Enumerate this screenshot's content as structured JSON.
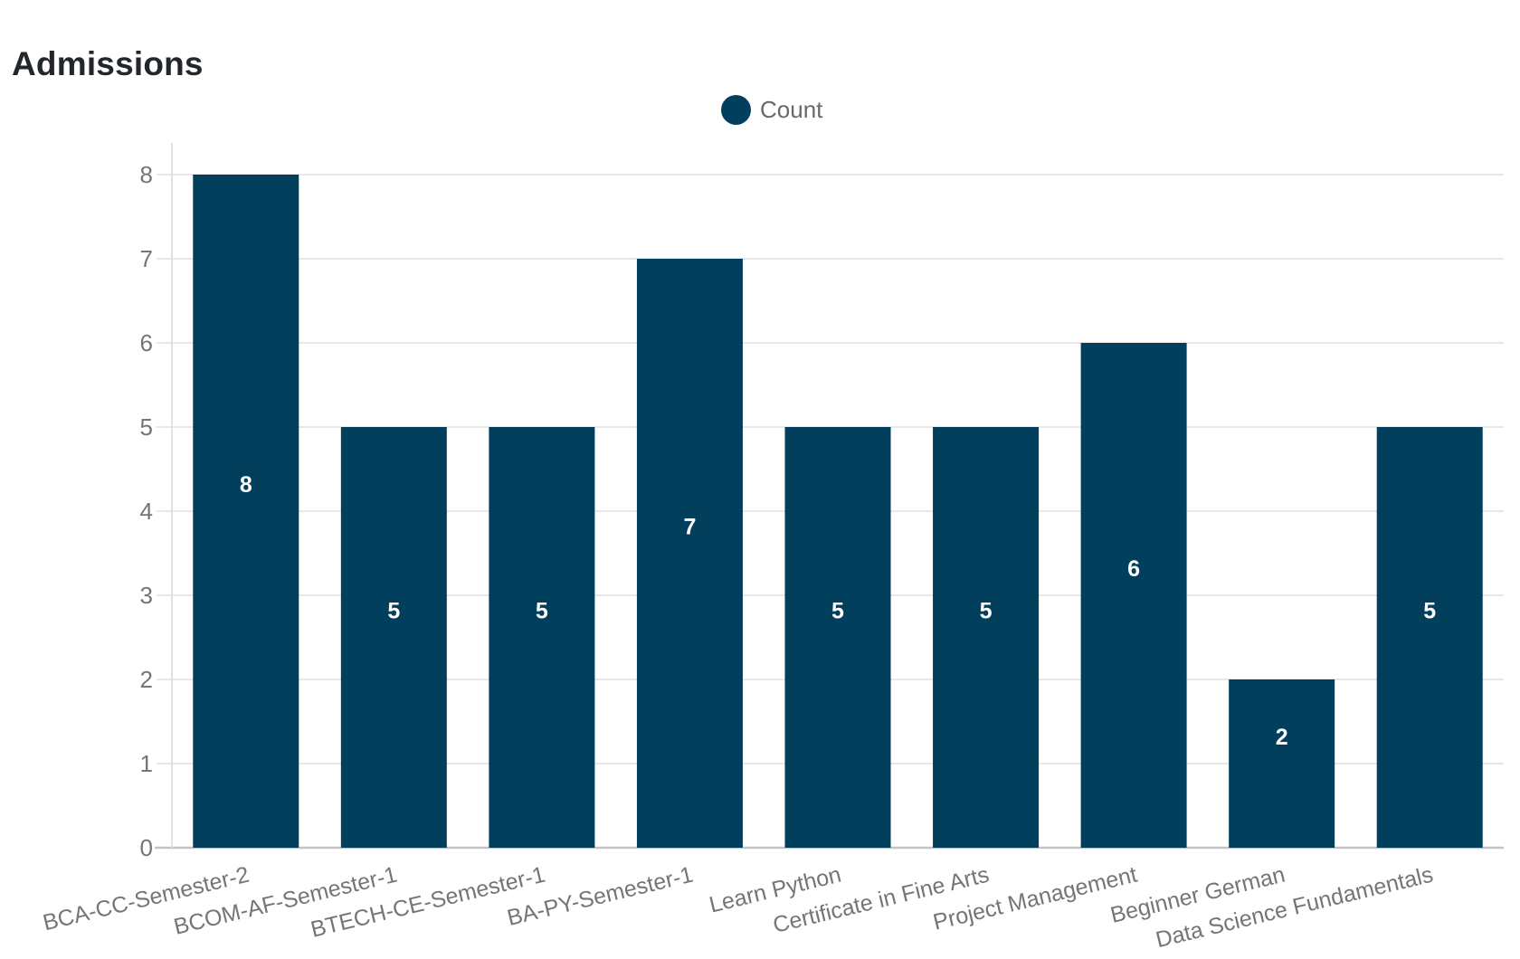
{
  "chart_data": {
    "type": "bar",
    "title": "Admissions",
    "categories": [
      "BCA-CC-Semester-2",
      "BCOM-AF-Semester-1",
      "BTECH-CE-Semester-1",
      "BA-PY-Semester-1",
      "Learn Python",
      "Certificate in Fine Arts",
      "Project Management",
      "Beginner German",
      "Data Science Fundamentals"
    ],
    "series": [
      {
        "name": "Count",
        "values": [
          8,
          5,
          5,
          7,
          5,
          5,
          6,
          2,
          5
        ]
      }
    ],
    "value_labels": [
      "8",
      "5",
      "5",
      "7",
      "5",
      "5",
      "6",
      "2",
      "5"
    ],
    "ylim": [
      0,
      8
    ],
    "yticks": [
      "0",
      "1",
      "2",
      "3",
      "4",
      "5",
      "6",
      "7",
      "8"
    ],
    "grid": "horizontal",
    "legend_position": "top-center",
    "colors": {
      "bar": "#023f5c",
      "grid": "#e7e7e7",
      "axis_baseline": "#c3c3c3",
      "y_axis_line": "#e2e2e2",
      "tick_label": "#757575",
      "title": "#23272c",
      "legend_text": "#696969",
      "value_label": "#ffffff"
    }
  }
}
